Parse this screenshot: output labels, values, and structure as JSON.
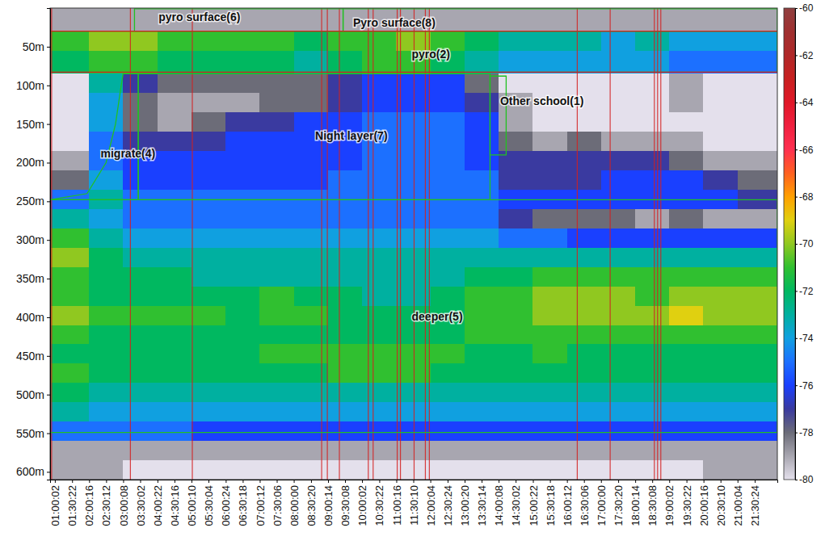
{
  "chart_data": {
    "type": "heatmap",
    "xlim": [
      3100,
      79800
    ],
    "ylim": [
      0,
      610
    ],
    "xticks": [
      {
        "value": 3602,
        "label": "01:00:02"
      },
      {
        "value": 5422,
        "label": "01:30:22"
      },
      {
        "value": 7216,
        "label": "02:00:16"
      },
      {
        "value": 9012,
        "label": "02:30:12"
      },
      {
        "value": 10808,
        "label": "03:00:08"
      },
      {
        "value": 12602,
        "label": "03:30:02"
      },
      {
        "value": 14422,
        "label": "04:00:22"
      },
      {
        "value": 16216,
        "label": "04:30:16"
      },
      {
        "value": 18010,
        "label": "05:00:10"
      },
      {
        "value": 19804,
        "label": "05:30:04"
      },
      {
        "value": 21624,
        "label": "06:00:24"
      },
      {
        "value": 23418,
        "label": "06:30:18"
      },
      {
        "value": 25212,
        "label": "07:00:12"
      },
      {
        "value": 27006,
        "label": "07:30:06"
      },
      {
        "value": 28800,
        "label": "08:00:00"
      },
      {
        "value": 30620,
        "label": "08:30:20"
      },
      {
        "value": 32414,
        "label": "09:00:14"
      },
      {
        "value": 34208,
        "label": "09:30:08"
      },
      {
        "value": 36002,
        "label": "10:00:02"
      },
      {
        "value": 37822,
        "label": "10:30:22"
      },
      {
        "value": 39616,
        "label": "11:00:16"
      },
      {
        "value": 41410,
        "label": "11:30:10"
      },
      {
        "value": 43204,
        "label": "12:00:04"
      },
      {
        "value": 45024,
        "label": "12:30:24"
      },
      {
        "value": 46820,
        "label": "13:00:20"
      },
      {
        "value": 48614,
        "label": "13:30:14"
      },
      {
        "value": 50408,
        "label": "14:00:08"
      },
      {
        "value": 52202,
        "label": "14:30:02"
      },
      {
        "value": 54022,
        "label": "15:00:22"
      },
      {
        "value": 55818,
        "label": "15:30:18"
      },
      {
        "value": 57612,
        "label": "16:00:12"
      },
      {
        "value": 59406,
        "label": "16:30:06"
      },
      {
        "value": 61200,
        "label": "17:00:00"
      },
      {
        "value": 63020,
        "label": "17:30:20"
      },
      {
        "value": 64814,
        "label": "18:00:14"
      },
      {
        "value": 66608,
        "label": "18:30:08"
      },
      {
        "value": 68402,
        "label": "19:00:02"
      },
      {
        "value": 70222,
        "label": "19:30:22"
      },
      {
        "value": 72016,
        "label": "20:00:16"
      },
      {
        "value": 73810,
        "label": "20:30:10"
      },
      {
        "value": 75604,
        "label": "21:00:04"
      },
      {
        "value": 77424,
        "label": "21:30:24"
      }
    ],
    "yticks": [
      {
        "value": 50,
        "label": "50m"
      },
      {
        "value": 100,
        "label": "100m"
      },
      {
        "value": 150,
        "label": "150m"
      },
      {
        "value": 200,
        "label": "200m"
      },
      {
        "value": 250,
        "label": "250m"
      },
      {
        "value": 300,
        "label": "300m"
      },
      {
        "value": 350,
        "label": "350m"
      },
      {
        "value": 400,
        "label": "400m"
      },
      {
        "value": 450,
        "label": "450m"
      },
      {
        "value": 500,
        "label": "500m"
      },
      {
        "value": 550,
        "label": "550m"
      },
      {
        "value": 600,
        "label": "600m"
      }
    ],
    "color_range": [
      -80,
      -60
    ],
    "color_ticks": [
      -80,
      -78,
      -76,
      -74,
      -72,
      -70,
      -68,
      -66,
      -64,
      -62,
      -60
    ],
    "x_edges": [
      3100,
      7200,
      10800,
      14400,
      18000,
      21600,
      25200,
      28800,
      32400,
      36000,
      39600,
      43200,
      46800,
      50400,
      54000,
      57600,
      61200,
      64800,
      68400,
      72000,
      75600,
      79800
    ],
    "y_edges": [
      0,
      30,
      55,
      85,
      110,
      135,
      160,
      185,
      210,
      235,
      260,
      285,
      310,
      335,
      360,
      385,
      410,
      435,
      460,
      485,
      510,
      535,
      560,
      585,
      610
    ],
    "cells": [
      [
        -79,
        -79,
        -79,
        -79,
        -79,
        -79,
        -79,
        -79,
        -79,
        -79,
        -79,
        -79,
        -79,
        -79,
        -79,
        -79,
        -79,
        -79,
        -79,
        -79,
        -79
      ],
      [
        -71,
        -70,
        -70,
        -71,
        -71,
        -71,
        -71,
        -72,
        -71,
        -71,
        -70,
        -71,
        -72,
        -73,
        -73,
        -73,
        -74,
        -73,
        -74,
        -74,
        -74
      ],
      [
        -72,
        -71,
        -71,
        -72,
        -72,
        -72,
        -72,
        -73,
        -72,
        -71,
        -71,
        -72,
        -73,
        -74,
        -74,
        -74,
        -74,
        -74,
        -75,
        -75,
        -75
      ],
      [
        -80,
        -73,
        -77,
        -78,
        -78,
        -78,
        -78,
        -78,
        -77,
        -76,
        -76,
        -76,
        -78,
        -80,
        -80,
        -80,
        -80,
        -80,
        -79,
        -80,
        -80
      ],
      [
        -80,
        -74,
        -78,
        -79,
        -79,
        -79,
        -78,
        -78,
        -77,
        -76,
        -76,
        -76,
        -77,
        -79,
        -80,
        -80,
        -80,
        -80,
        -79,
        -80,
        -80
      ],
      [
        -80,
        -74,
        -78,
        -79,
        -78,
        -77,
        -77,
        -76,
        -76,
        -75,
        -75,
        -75,
        -76,
        -79,
        -80,
        -80,
        -80,
        -80,
        -80,
        -80,
        -80
      ],
      [
        -80,
        -75,
        -77,
        -77,
        -77,
        -76,
        -76,
        -76,
        -76,
        -75,
        -75,
        -75,
        -76,
        -78,
        -79,
        -78,
        -79,
        -79,
        -79,
        -80,
        -80
      ],
      [
        -79,
        -75,
        -76,
        -76,
        -76,
        -76,
        -76,
        -76,
        -76,
        -75,
        -75,
        -75,
        -76,
        -77,
        -77,
        -77,
        -77,
        -77,
        -78,
        -79,
        -79
      ],
      [
        -78,
        -74,
        -76,
        -76,
        -76,
        -76,
        -76,
        -76,
        -75,
        -75,
        -75,
        -75,
        -75,
        -77,
        -77,
        -77,
        -76,
        -76,
        -76,
        -77,
        -78
      ],
      [
        -75,
        -73,
        -75,
        -75,
        -75,
        -75,
        -75,
        -75,
        -75,
        -75,
        -75,
        -75,
        -75,
        -76,
        -76,
        -76,
        -76,
        -76,
        -76,
        -76,
        -77
      ],
      [
        -73,
        -74,
        -75,
        -75,
        -75,
        -75,
        -75,
        -75,
        -75,
        -75,
        -75,
        -75,
        -75,
        -77,
        -78,
        -78,
        -78,
        -79,
        -78,
        -79,
        -79
      ],
      [
        -71,
        -73,
        -74,
        -74,
        -74,
        -74,
        -74,
        -74,
        -74,
        -74,
        -74,
        -74,
        -74,
        -75,
        -75,
        -76,
        -76,
        -76,
        -76,
        -76,
        -76
      ],
      [
        -70,
        -72,
        -73,
        -73,
        -73,
        -73,
        -73,
        -73,
        -73,
        -73,
        -73,
        -73,
        -73,
        -73,
        -73,
        -73,
        -73,
        -73,
        -73,
        -73,
        -73
      ],
      [
        -71,
        -72,
        -72,
        -72,
        -73,
        -73,
        -73,
        -73,
        -73,
        -73,
        -73,
        -73,
        -72,
        -72,
        -71,
        -71,
        -71,
        -71,
        -71,
        -71,
        -71
      ],
      [
        -71,
        -72,
        -72,
        -72,
        -72,
        -72,
        -71,
        -72,
        -72,
        -73,
        -73,
        -72,
        -71,
        -71,
        -70,
        -70,
        -70,
        -71,
        -70,
        -70,
        -70
      ],
      [
        -70,
        -71,
        -71,
        -71,
        -71,
        -72,
        -71,
        -71,
        -72,
        -72,
        -72,
        -72,
        -71,
        -71,
        -70,
        -70,
        -70,
        -70,
        -69,
        -70,
        -70
      ],
      [
        -71,
        -72,
        -72,
        -72,
        -72,
        -72,
        -72,
        -72,
        -72,
        -72,
        -72,
        -72,
        -71,
        -71,
        -71,
        -71,
        -71,
        -71,
        -71,
        -71,
        -71
      ],
      [
        -72,
        -72,
        -72,
        -72,
        -72,
        -72,
        -71,
        -71,
        -71,
        -71,
        -71,
        -71,
        -72,
        -72,
        -71,
        -72,
        -72,
        -72,
        -72,
        -72,
        -72
      ],
      [
        -71,
        -72,
        -72,
        -72,
        -72,
        -72,
        -72,
        -72,
        -71,
        -71,
        -71,
        -72,
        -72,
        -72,
        -72,
        -72,
        -72,
        -72,
        -72,
        -72,
        -72
      ],
      [
        -72,
        -73,
        -73,
        -73,
        -73,
        -73,
        -73,
        -73,
        -73,
        -73,
        -73,
        -73,
        -73,
        -73,
        -73,
        -73,
        -73,
        -73,
        -73,
        -73,
        -73
      ],
      [
        -73,
        -74,
        -74,
        -74,
        -74,
        -74,
        -74,
        -74,
        -74,
        -74,
        -74,
        -74,
        -74,
        -74,
        -74,
        -74,
        -74,
        -74,
        -74,
        -74,
        -74
      ],
      [
        -75,
        -75,
        -75,
        -75,
        -76,
        -76,
        -76,
        -76,
        -76,
        -76,
        -76,
        -76,
        -76,
        -76,
        -76,
        -76,
        -76,
        -76,
        -76,
        -76,
        -76
      ],
      [
        -79,
        -79,
        -79,
        -79,
        -79,
        -79,
        -79,
        -79,
        -79,
        -79,
        -79,
        -79,
        -79,
        -79,
        -79,
        -79,
        -79,
        -79,
        -79,
        -79,
        -79
      ],
      [
        -79,
        -79,
        -80,
        -80,
        -80,
        -80,
        -80,
        -80,
        -80,
        -80,
        -80,
        -80,
        -80,
        -80,
        -80,
        -80,
        -80,
        -80,
        -80,
        -79,
        -79
      ]
    ],
    "depth_lines": [
      30,
      83
    ],
    "time_lines": [
      3260,
      11570,
      18100,
      31740,
      32340,
      33610,
      36660,
      37170,
      39710,
      40050,
      41490,
      42680,
      43100,
      58700,
      62170,
      66830,
      67170,
      67510
    ],
    "regions": [
      {
        "points": [
          [
            12000,
            1
          ],
          [
            34000,
            1
          ],
          [
            34000,
            30
          ],
          [
            12000,
            30
          ]
        ]
      },
      {
        "points": [
          [
            34000,
            1
          ],
          [
            79800,
            1
          ],
          [
            79800,
            30
          ],
          [
            34000,
            30
          ]
        ]
      },
      {
        "points": [
          [
            3100,
            30
          ],
          [
            79800,
            30
          ],
          [
            79800,
            83
          ],
          [
            3100,
            83
          ]
        ]
      },
      {
        "points": [
          [
            3100,
            248
          ],
          [
            7000,
            240
          ],
          [
            9000,
            200
          ],
          [
            10000,
            150
          ],
          [
            10600,
            100
          ],
          [
            10800,
            85
          ],
          [
            12400,
            85
          ],
          [
            12400,
            248
          ]
        ]
      },
      {
        "points": [
          [
            12400,
            85
          ],
          [
            49500,
            85
          ],
          [
            49500,
            248
          ],
          [
            12400,
            248
          ]
        ]
      },
      {
        "points": [
          [
            49500,
            88
          ],
          [
            51200,
            88
          ],
          [
            51200,
            190
          ],
          [
            49500,
            190
          ]
        ]
      },
      {
        "points": [
          [
            3100,
            248
          ],
          [
            79800,
            248
          ],
          [
            79800,
            549
          ],
          [
            3100,
            549
          ]
        ]
      }
    ],
    "annotations": [
      {
        "text": "pyro surface(6)",
        "x": 14540,
        "y": 12
      },
      {
        "text": "Pyro surface(8)",
        "x": 35050,
        "y": 19
      },
      {
        "text": "pyro(2)",
        "x": 41240,
        "y": 60
      },
      {
        "text": "Other school(1)",
        "x": 50560,
        "y": 120
      },
      {
        "text": "Night layer(7)",
        "x": 31060,
        "y": 165
      },
      {
        "text": "migrate(4)",
        "x": 8430,
        "y": 188
      },
      {
        "text": "deeper(5)",
        "x": 41240,
        "y": 399
      }
    ]
  }
}
